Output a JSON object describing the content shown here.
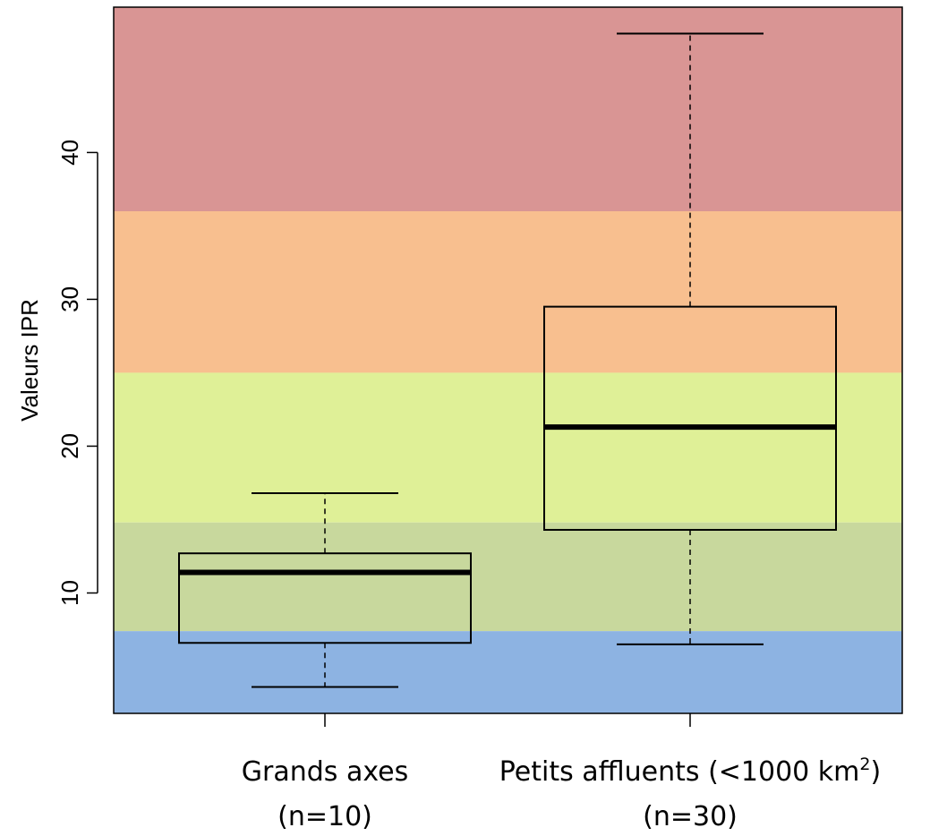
{
  "chart_data": {
    "type": "boxplot",
    "ylabel": "Valeurs IPR",
    "ylim": [
      1.8,
      49.9
    ],
    "yticks": [
      "10",
      "20",
      "30",
      "40"
    ],
    "ytick_values": [
      10,
      20,
      30,
      40
    ],
    "categories": [
      {
        "line1": "Grands axes",
        "line2": "(n=10)"
      },
      {
        "line1_main": "Petits affluents (<1000 km",
        "line1_sup": "2",
        "line1_end": ")",
        "line2": "(n=30)"
      }
    ],
    "boxes": [
      {
        "whisker_low": 3.6,
        "q1": 6.6,
        "median": 11.4,
        "q3": 12.7,
        "whisker_high": 16.8
      },
      {
        "whisker_low": 6.5,
        "q1": 14.3,
        "median": 21.3,
        "q3": 29.5,
        "whisker_high": 48.1
      }
    ],
    "bands": [
      {
        "from": 36.0,
        "to": 49.9,
        "color": "#d99594"
      },
      {
        "from": 25.0,
        "to": 36.0,
        "color": "#f8bf8f"
      },
      {
        "from": 14.8,
        "to": 25.0,
        "color": "#dff097"
      },
      {
        "from": 7.4,
        "to": 14.8,
        "color": "#c8d89d"
      },
      {
        "from": 1.8,
        "to": 7.4,
        "color": "#8db3e2"
      }
    ]
  }
}
